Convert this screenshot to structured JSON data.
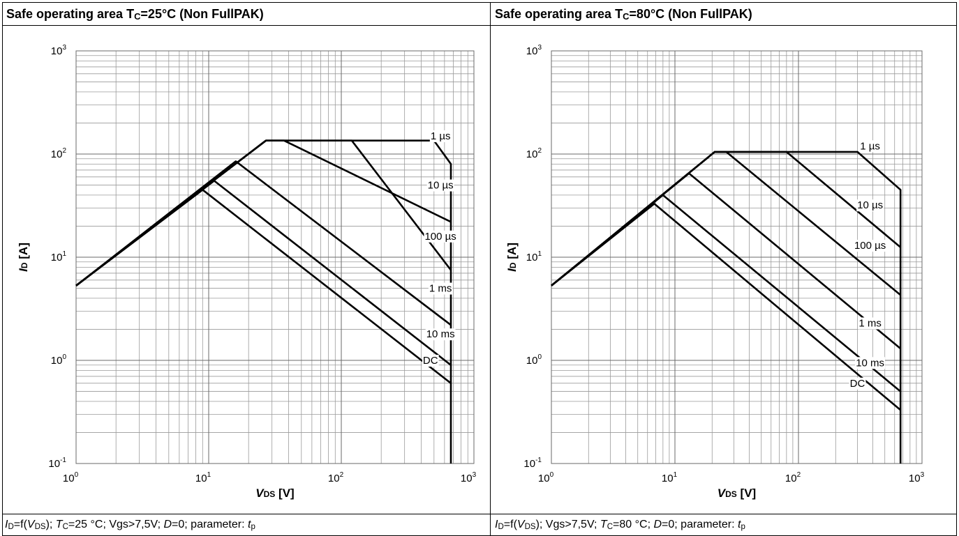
{
  "chart_data": [
    {
      "type": "line",
      "title": "Safe operating area T C=25°C (Non FullPAK)",
      "title_parts": {
        "pre": "Safe operating area T",
        "sub": "C",
        "post": "=25°C (Non FullPAK)"
      },
      "xlabel": {
        "main": "V",
        "sub": "DS",
        "unit": " [V]"
      },
      "ylabel": {
        "main": "I",
        "sub": "D",
        "unit": " [A]"
      },
      "x_scale": "log",
      "y_scale": "log",
      "xlim": [
        1,
        1000
      ],
      "ylim": [
        0.1,
        1000
      ],
      "x_ticks": [
        {
          "base": "10",
          "exp": "0"
        },
        {
          "base": "10",
          "exp": "1"
        },
        {
          "base": "10",
          "exp": "2"
        },
        {
          "base": "10",
          "exp": "3"
        }
      ],
      "y_ticks": [
        {
          "base": "10",
          "exp": "-1"
        },
        {
          "base": "10",
          "exp": "0"
        },
        {
          "base": "10",
          "exp": "1"
        },
        {
          "base": "10",
          "exp": "2"
        },
        {
          "base": "10",
          "exp": "3"
        }
      ],
      "grid": true,
      "series": [
        {
          "name": "1 µs",
          "x": [
            1,
            27,
            500,
            670,
            670
          ],
          "y": [
            5.3,
            135,
            135,
            80,
            0.1
          ],
          "label_at": [
            560,
            150
          ]
        },
        {
          "name": "10 µs",
          "x": [
            1,
            27,
            37,
            670
          ],
          "y": [
            5.3,
            135,
            135,
            22
          ],
          "label_at": [
            560,
            50
          ]
        },
        {
          "name": "100 µs",
          "x": [
            1,
            27,
            120,
            670
          ],
          "y": [
            5.3,
            135,
            135,
            7.5
          ],
          "label_at": [
            560,
            16
          ]
        },
        {
          "name": "1 ms",
          "x": [
            1,
            16,
            670
          ],
          "y": [
            5.3,
            85,
            2.2
          ],
          "label_at": [
            560,
            5
          ]
        },
        {
          "name": "10 ms",
          "x": [
            1,
            11,
            670
          ],
          "y": [
            5.3,
            55,
            0.9
          ],
          "label_at": [
            560,
            1.8
          ]
        },
        {
          "name": "DC",
          "x": [
            1,
            9,
            670
          ],
          "y": [
            5.3,
            45,
            0.6
          ],
          "label_at": [
            470,
            1.0
          ]
        }
      ]
    },
    {
      "type": "line",
      "title": "Safe operating area T C=80°C (Non FullPAK)",
      "title_parts": {
        "pre": "Safe operating area T",
        "sub": "C",
        "post": "=80°C (Non FullPAK)"
      },
      "xlabel": {
        "main": "V",
        "sub": "DS",
        "unit": " [V]"
      },
      "ylabel": {
        "main": "I",
        "sub": "D",
        "unit": " [A]"
      },
      "x_scale": "log",
      "y_scale": "log",
      "xlim": [
        1,
        1000
      ],
      "ylim": [
        0.1,
        1000
      ],
      "x_ticks": [
        {
          "base": "10",
          "exp": "0"
        },
        {
          "base": "10",
          "exp": "1"
        },
        {
          "base": "10",
          "exp": "2"
        },
        {
          "base": "10",
          "exp": "3"
        }
      ],
      "y_ticks": [
        {
          "base": "10",
          "exp": "-1"
        },
        {
          "base": "10",
          "exp": "0"
        },
        {
          "base": "10",
          "exp": "1"
        },
        {
          "base": "10",
          "exp": "2"
        },
        {
          "base": "10",
          "exp": "3"
        }
      ],
      "grid": true,
      "series": [
        {
          "name": "1 µs",
          "x": [
            1,
            21,
            300,
            670,
            670
          ],
          "y": [
            5.3,
            105,
            105,
            45,
            0.1
          ],
          "label_at": [
            380,
            120
          ]
        },
        {
          "name": "10 µs",
          "x": [
            1,
            21,
            26,
            670
          ],
          "y": [
            5.3,
            105,
            105,
            4.3
          ],
          "label_at": [
            380,
            32
          ]
        },
        {
          "name": "100 µs",
          "x": [
            1,
            21,
            80,
            670
          ],
          "y": [
            5.3,
            105,
            105,
            12.5
          ],
          "label_at": [
            380,
            13
          ]
        },
        {
          "name": "1 ms",
          "x": [
            1,
            13,
            670
          ],
          "y": [
            5.3,
            65,
            1.3
          ],
          "label_at": [
            380,
            2.3
          ]
        },
        {
          "name": "10 ms",
          "x": [
            1,
            8,
            670
          ],
          "y": [
            5.3,
            40,
            0.5
          ],
          "label_at": [
            380,
            0.95
          ]
        },
        {
          "name": "DC",
          "x": [
            1,
            6.8,
            670
          ],
          "y": [
            5.3,
            33,
            0.33
          ],
          "label_at": [
            300,
            0.6
          ]
        }
      ]
    }
  ],
  "captions": [
    {
      "i": "I",
      "i_sub": "D",
      "eq": "=f(",
      "v": "V",
      "v_sub": "DS",
      "rest1": "); ",
      "t": "T",
      "t_sub": "C",
      "rest2": "=25 °C; Vgs>7,5V; ",
      "d": "D",
      "rest3": "=0; parameter: ",
      "tp": "t",
      "tp_sub": "p"
    },
    {
      "i": "I",
      "i_sub": "D",
      "eq": "=f(",
      "v": "V",
      "v_sub": "DS",
      "rest1": "); Vgs>7,5V; ",
      "t": "T",
      "t_sub": "C",
      "rest2": "=80 °C; ",
      "d": "D",
      "rest3": "=0; parameter: ",
      "tp": "t",
      "tp_sub": "p"
    }
  ]
}
